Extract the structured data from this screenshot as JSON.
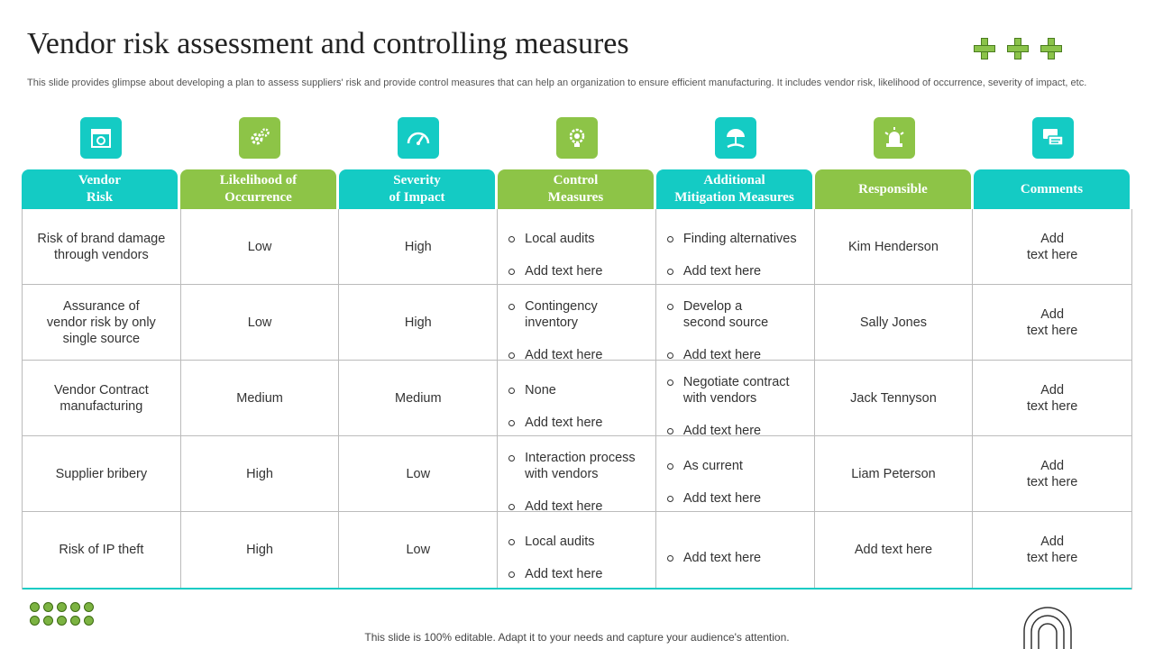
{
  "title": "Vendor risk assessment and controlling measures",
  "subtitle": "This slide provides glimpse about developing a plan to assess suppliers' risk and provide control measures that can help an organization to ensure efficient manufacturing. It includes vendor risk, likelihood of occurrence, severity of impact, etc.",
  "colors": {
    "teal": "#14cbc4",
    "green": "#8dc447"
  },
  "columns": [
    {
      "label": "Vendor\nRisk",
      "icon": "store-icon",
      "color": "teal"
    },
    {
      "label": "Likelihood of\nOccurrence",
      "icon": "gears-icon",
      "color": "green"
    },
    {
      "label": "Severity\nof Impact",
      "icon": "gauge-icon",
      "color": "teal"
    },
    {
      "label": "Control\nMeasures",
      "icon": "lightbulb-gear-icon",
      "color": "green"
    },
    {
      "label": "Additional\nMitigation Measures",
      "icon": "umbrella-hand-icon",
      "color": "teal"
    },
    {
      "label": "Responsible",
      "icon": "alarm-light-icon",
      "color": "green"
    },
    {
      "label": "Comments",
      "icon": "chat-bubbles-icon",
      "color": "teal"
    }
  ],
  "rows": [
    {
      "risk": "Risk of brand damage\nthrough vendors",
      "likelihood": "Low",
      "severity": "High",
      "control": [
        "Local audits",
        "Add text here"
      ],
      "mitigation": [
        "Finding alternatives",
        "Add text here"
      ],
      "responsible": "Kim Henderson",
      "comments": "Add\ntext here"
    },
    {
      "risk": "Assurance of\nvendor risk by only\nsingle source",
      "likelihood": "Low",
      "severity": "High",
      "control": [
        "Contingency\ninventory",
        "Add text here"
      ],
      "mitigation": [
        "Develop a\nsecond source",
        "Add text here"
      ],
      "responsible": "Sally Jones",
      "comments": "Add\ntext here"
    },
    {
      "risk": "Vendor Contract\nmanufacturing",
      "likelihood": "Medium",
      "severity": "Medium",
      "control": [
        "None",
        "Add text here"
      ],
      "mitigation": [
        "Negotiate contract\nwith vendors",
        "Add text here"
      ],
      "responsible": "Jack Tennyson",
      "comments": "Add\ntext here"
    },
    {
      "risk": "Supplier bribery",
      "likelihood": "High",
      "severity": "Low",
      "control": [
        "Interaction process\nwith vendors",
        "Add text here"
      ],
      "mitigation": [
        "As current",
        "Add text here"
      ],
      "responsible": "Liam Peterson",
      "comments": "Add\ntext here"
    },
    {
      "risk": "Risk of IP theft",
      "likelihood": "High",
      "severity": "Low",
      "control": [
        "Local audits",
        "Add text here"
      ],
      "mitigation": [
        "Add text here"
      ],
      "responsible": "Add text here",
      "comments": "Add\ntext here"
    }
  ],
  "footer": "This slide is 100% editable. Adapt it to your needs and capture your audience's attention."
}
